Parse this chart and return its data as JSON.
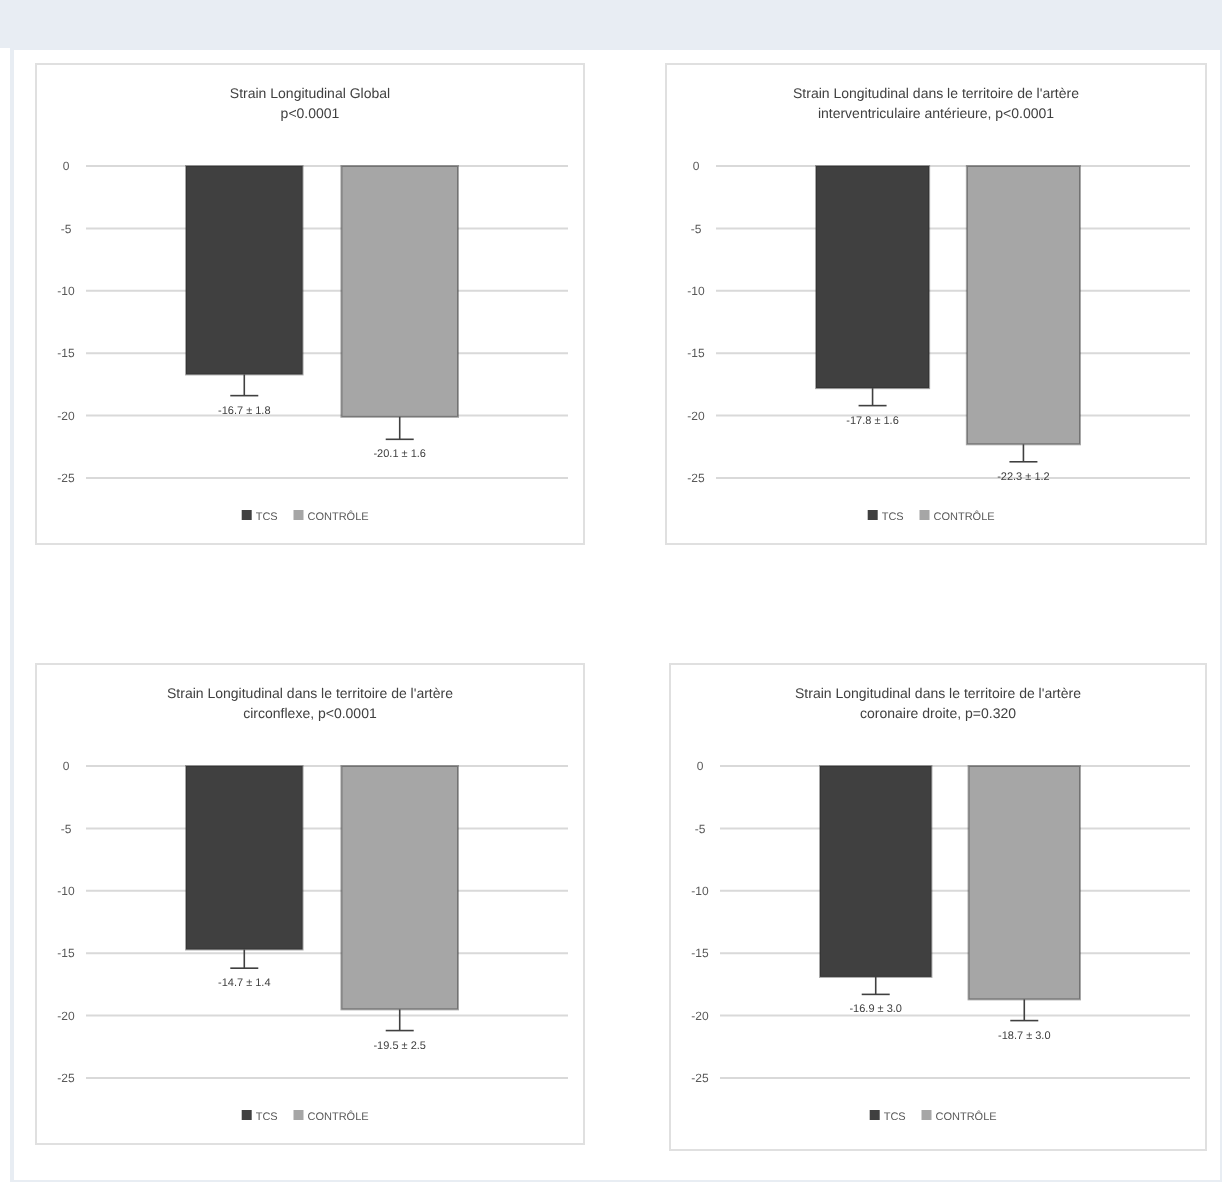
{
  "chart_data": [
    {
      "type": "bar",
      "title": "Strain Longitudinal Global\np<0.0001",
      "categories": [
        null
      ],
      "ylim": [
        -25,
        0
      ],
      "yticks": [
        0,
        -5,
        -10,
        -15,
        -20,
        -25
      ],
      "grid": "y",
      "legend": "bottom",
      "series": [
        {
          "name": "TCS",
          "color": "#404040",
          "values": [
            -16.7
          ],
          "errors": [
            [
              -18.4,
              -16.7
            ]
          ],
          "value_labels": [
            "-16.7 ± 1.8"
          ]
        },
        {
          "name": "CONTRÔLE",
          "color": "#a6a6a6",
          "values": [
            -20.1
          ],
          "errors": [
            [
              -21.9,
              -20.1
            ]
          ],
          "value_labels": [
            "-20.1 ± 1.6"
          ]
        }
      ]
    },
    {
      "type": "bar",
      "title": "Strain Longitudinal dans le territoire de l'artère\ninterventriculaire antérieure, p<0.0001",
      "categories": [
        null
      ],
      "ylim": [
        -25,
        0
      ],
      "yticks": [
        0,
        -5,
        -10,
        -15,
        -20,
        -25
      ],
      "grid": "y",
      "legend": "bottom",
      "series": [
        {
          "name": "TCS",
          "color": "#404040",
          "values": [
            -17.8
          ],
          "errors": [
            [
              -19.2,
              -17.8
            ]
          ],
          "value_labels": [
            "-17.8 ± 1.6"
          ]
        },
        {
          "name": "CONTRÔLE",
          "color": "#a6a6a6",
          "values": [
            -22.3
          ],
          "errors": [
            [
              -23.7,
              -22.3
            ]
          ],
          "value_labels": [
            "-22.3 ± 1.2"
          ]
        }
      ]
    },
    {
      "type": "bar",
      "title": "Strain Longitudinal dans le territoire de l'artère\ncirconflexe, p<0.0001",
      "categories": [
        null
      ],
      "ylim": [
        -25,
        0
      ],
      "yticks": [
        0,
        -5,
        -10,
        -15,
        -20,
        -25
      ],
      "grid": "y",
      "legend": "bottom",
      "series": [
        {
          "name": "TCS",
          "color": "#404040",
          "values": [
            -14.7
          ],
          "errors": [
            [
              -16.2,
              -14.7
            ]
          ],
          "value_labels": [
            "-14.7 ± 1.4"
          ]
        },
        {
          "name": "CONTRÔLE",
          "color": "#a6a6a6",
          "values": [
            -19.5
          ],
          "errors": [
            [
              -21.2,
              -19.5
            ]
          ],
          "value_labels": [
            "-19.5 ± 2.5"
          ]
        }
      ]
    },
    {
      "type": "bar",
      "title": "Strain Longitudinal dans le territoire de l'artère\ncoronaire droite, p=0.320",
      "categories": [
        null
      ],
      "ylim": [
        -25,
        0
      ],
      "yticks": [
        0,
        -5,
        -10,
        -15,
        -20,
        -25
      ],
      "grid": "y",
      "legend": "bottom",
      "series": [
        {
          "name": "TCS",
          "color": "#404040",
          "values": [
            -16.9
          ],
          "errors": [
            [
              -18.3,
              -16.9
            ]
          ],
          "value_labels": [
            "-16.9 ± 3.0"
          ]
        },
        {
          "name": "CONTRÔLE",
          "color": "#a6a6a6",
          "values": [
            -18.7
          ],
          "errors": [
            [
              -20.4,
              -18.7
            ]
          ],
          "value_labels": [
            "-18.7 ± 3.0"
          ]
        }
      ]
    }
  ]
}
